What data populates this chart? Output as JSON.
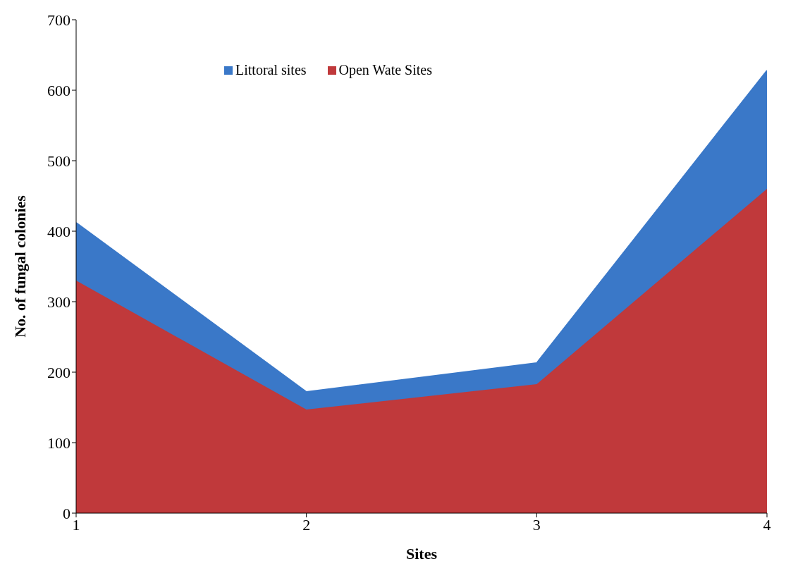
{
  "chart_data": {
    "type": "area",
    "stacked": true,
    "xlabel": "Sites",
    "ylabel": "No. of fungal colonies",
    "x": [
      1,
      2,
      3,
      4
    ],
    "xlim": [
      1,
      4
    ],
    "xticks": [
      1,
      2,
      3,
      4
    ],
    "ylim": [
      0,
      700
    ],
    "yticks": [
      0,
      100,
      200,
      300,
      400,
      500,
      600,
      700
    ],
    "series": [
      {
        "name": "Open Wate Sites",
        "color": "#c0393b",
        "values": [
          330,
          147,
          183,
          460
        ]
      },
      {
        "name": "Littoral sites",
        "color": "#3a78c8",
        "values": [
          82,
          25,
          30,
          168
        ]
      }
    ],
    "legend": "top",
    "grid": false
  }
}
